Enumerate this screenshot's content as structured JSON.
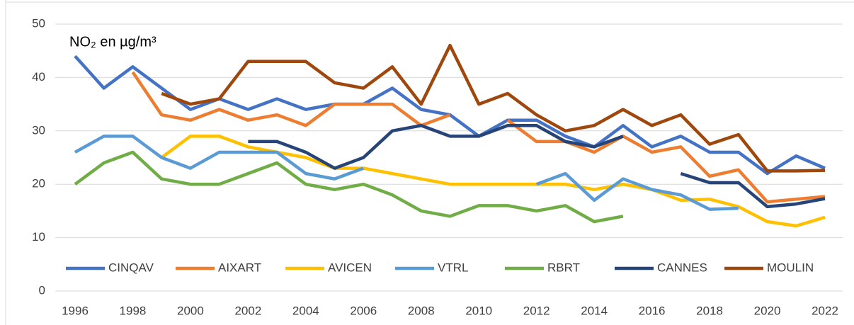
{
  "chart_data": {
    "type": "line",
    "annotation": "NO₂ en µg/m³",
    "x": [
      1996,
      1997,
      1998,
      1999,
      2000,
      2001,
      2002,
      2003,
      2004,
      2005,
      2006,
      2007,
      2008,
      2009,
      2010,
      2011,
      2012,
      2013,
      2014,
      2015,
      2016,
      2017,
      2018,
      2019,
      2020,
      2021,
      2022
    ],
    "xlim": [
      1996,
      2022
    ],
    "xticks": [
      1996,
      1998,
      2000,
      2002,
      2004,
      2006,
      2008,
      2010,
      2012,
      2014,
      2016,
      2018,
      2020,
      2022
    ],
    "ylim": [
      0,
      50
    ],
    "yticks": [
      0,
      10,
      20,
      30,
      40,
      50
    ],
    "grid": true,
    "legend": "bottom",
    "series": [
      {
        "name": "CINQAV",
        "color": "#4472c4",
        "values": [
          44,
          38,
          42,
          38,
          34,
          36,
          34,
          36,
          34,
          35,
          35,
          38,
          34,
          33,
          29,
          32,
          32,
          29,
          27,
          31,
          27,
          29,
          26,
          26,
          22,
          25.3,
          23
        ]
      },
      {
        "name": "AIXART",
        "color": "#ed7d31",
        "values": [
          null,
          null,
          41,
          33,
          32,
          34,
          32,
          33,
          31,
          35,
          35,
          35,
          31,
          33,
          null,
          32,
          28,
          28,
          26,
          29,
          26,
          27,
          21.5,
          22.7,
          16.7,
          17.2,
          17.7
        ]
      },
      {
        "name": "AVICEN",
        "color": "#ffc000",
        "values": [
          null,
          null,
          null,
          25,
          29,
          29,
          27,
          26,
          25,
          23,
          23,
          22,
          21,
          20,
          20,
          20,
          20,
          20,
          19,
          20,
          19,
          17,
          17.2,
          15.8,
          13,
          12.2,
          13.8
        ]
      },
      {
        "name": "VTRL",
        "color": "#5b9bd5",
        "values": [
          26,
          29,
          29,
          25,
          23,
          26,
          26,
          26,
          22,
          21,
          23,
          null,
          null,
          null,
          null,
          null,
          20,
          22,
          17,
          21,
          19,
          18,
          15.3,
          15.5,
          null,
          null,
          null
        ]
      },
      {
        "name": "RBRT",
        "color": "#70ad47",
        "values": [
          20,
          24,
          26,
          21,
          20,
          20,
          22,
          24,
          20,
          19,
          20,
          18,
          15,
          14,
          16,
          16,
          15,
          16,
          13,
          14,
          null,
          null,
          null,
          null,
          null,
          null,
          null
        ]
      },
      {
        "name": "CANNES",
        "color": "#264478",
        "values": [
          null,
          null,
          null,
          null,
          null,
          null,
          28,
          28,
          26,
          23,
          25,
          30,
          31,
          29,
          29,
          31,
          31,
          28,
          27,
          29,
          null,
          22,
          20.3,
          20.3,
          15.8,
          16.3,
          17.3
        ]
      },
      {
        "name": "MOULIN",
        "color": "#9e480e",
        "values": [
          null,
          null,
          null,
          37,
          35,
          36,
          43,
          43,
          43,
          39,
          38,
          42,
          35,
          46,
          35,
          37,
          33,
          30,
          31,
          34,
          31,
          33,
          27.5,
          29.3,
          22.5,
          22.5,
          22.6
        ]
      }
    ]
  }
}
